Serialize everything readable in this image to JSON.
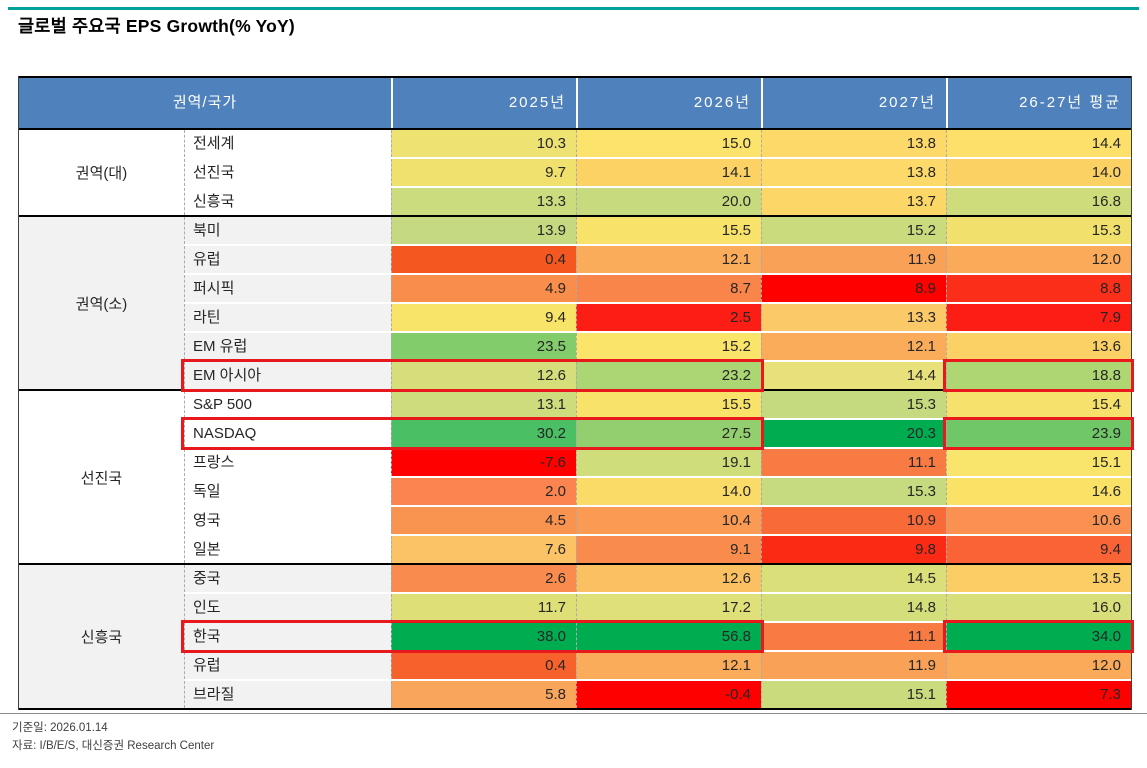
{
  "colors": {
    "accent_line": "#00A29B",
    "header_bg": "#4F81BD",
    "header_text": "#FFFFFF",
    "highlight_box": "#E8191C",
    "group_alt_bg": "#F2F2F2"
  },
  "chart_data": {
    "type": "heatmap",
    "title": "글로벌 주요국 EPS Growth(% YoY)",
    "unit": "% YoY",
    "columns": [
      "권역/국가",
      "2025년",
      "2026년",
      "2027년",
      "26-27년 평균"
    ],
    "groups": [
      {
        "label": "권역(대)",
        "bg": "#FFFFFF",
        "rows": [
          {
            "name": "전세계",
            "values": [
              "10.3",
              "15.0",
              "13.8",
              "14.4"
            ],
            "colors": [
              "#EDE272",
              "#FCE36B",
              "#FCD968",
              "#FCE06A"
            ],
            "highlighted": false
          },
          {
            "name": "선진국",
            "values": [
              "9.7",
              "14.1",
              "13.8",
              "14.0"
            ],
            "colors": [
              "#F0E16E",
              "#FCD265",
              "#FCD968",
              "#FCD164"
            ],
            "highlighted": false
          },
          {
            "name": "신흥국",
            "values": [
              "13.3",
              "20.0",
              "13.7",
              "16.8"
            ],
            "colors": [
              "#CBDC7E",
              "#C7DB7E",
              "#FCD667",
              "#CFDC7B"
            ],
            "highlighted": false
          }
        ]
      },
      {
        "label": "권역(소)",
        "bg": "#F2F2F2",
        "rows": [
          {
            "name": "북미",
            "values": [
              "13.9",
              "15.5",
              "15.2",
              "15.3"
            ],
            "colors": [
              "#C5DA80",
              "#F9E269",
              "#C9DB7D",
              "#F2E06C"
            ],
            "highlighted": false
          },
          {
            "name": "유럽",
            "values": [
              "0.4",
              "12.1",
              "11.9",
              "12.0"
            ],
            "colors": [
              "#F4571F",
              "#FBAC5B",
              "#F9A156",
              "#FAAA59"
            ],
            "highlighted": false
          },
          {
            "name": "퍼시픽",
            "values": [
              "4.9",
              "8.7",
              "8.9",
              "8.8"
            ],
            "colors": [
              "#F98D4B",
              "#F9854A",
              "#FE0000",
              "#FB2F19"
            ],
            "highlighted": false
          },
          {
            "name": "라틴",
            "values": [
              "9.4",
              "2.5",
              "13.3",
              "7.9"
            ],
            "colors": [
              "#F8E468",
              "#FC1D15",
              "#FBC967",
              "#FC1D15"
            ],
            "highlighted": false
          },
          {
            "name": "EM 유럽",
            "values": [
              "23.5",
              "15.2",
              "12.1",
              "13.6"
            ],
            "colors": [
              "#82CC6B",
              "#FAE46A",
              "#FBAC5B",
              "#FBD166"
            ],
            "highlighted": false
          },
          {
            "name": "EM 아시아",
            "values": [
              "12.6",
              "23.2",
              "14.4",
              "18.8"
            ],
            "colors": [
              "#D5DE7A",
              "#ACD573",
              "#E8E17B",
              "#AED673"
            ],
            "highlighted": true
          }
        ]
      },
      {
        "label": "선진국",
        "bg": "#FFFFFF",
        "rows": [
          {
            "name": "S&P 500",
            "values": [
              "13.1",
              "15.5",
              "15.3",
              "15.4"
            ],
            "colors": [
              "#CEDC7D",
              "#F8E269",
              "#C5DA7E",
              "#F5E16B"
            ],
            "highlighted": false
          },
          {
            "name": "NASDAQ",
            "values": [
              "30.2",
              "27.5",
              "20.3",
              "23.9"
            ],
            "colors": [
              "#4ABF63",
              "#93CF6F",
              "#00AC50",
              "#6FC767"
            ],
            "highlighted": true
          },
          {
            "name": "프랑스",
            "values": [
              "-7.6",
              "19.1",
              "11.1",
              "15.1"
            ],
            "colors": [
              "#FE0000",
              "#CFDD7B",
              "#F87B44",
              "#FAE56C"
            ],
            "highlighted": false
          },
          {
            "name": "독일",
            "values": [
              "2.0",
              "14.0",
              "15.3",
              "14.6"
            ],
            "colors": [
              "#FB8450",
              "#FBDB67",
              "#C6DB7F",
              "#FAE267"
            ],
            "highlighted": false
          },
          {
            "name": "영국",
            "values": [
              "4.5",
              "10.4",
              "10.9",
              "10.6"
            ],
            "colors": [
              "#F99350",
              "#FA9A53",
              "#F86A37",
              "#FA9150"
            ],
            "highlighted": false
          },
          {
            "name": "일본",
            "values": [
              "7.6",
              "9.1",
              "9.8",
              "9.4"
            ],
            "colors": [
              "#FBC266",
              "#F98C4D",
              "#FB2A14",
              "#F96335"
            ],
            "highlighted": false
          }
        ]
      },
      {
        "label": "신흥국",
        "bg": "#F2F2F2",
        "rows": [
          {
            "name": "중국",
            "values": [
              "2.6",
              "12.6",
              "14.5",
              "13.5"
            ],
            "colors": [
              "#F88B4D",
              "#FBC062",
              "#DADF79",
              "#FBCD65"
            ],
            "highlighted": false
          },
          {
            "name": "인도",
            "values": [
              "11.7",
              "17.2",
              "14.8",
              "16.0"
            ],
            "colors": [
              "#DEDF76",
              "#E0E07B",
              "#D4DE7B",
              "#D8DF7A"
            ],
            "highlighted": false
          },
          {
            "name": "한국",
            "values": [
              "38.0",
              "56.8",
              "11.1",
              "34.0"
            ],
            "colors": [
              "#00AC50",
              "#00AC50",
              "#F87B44",
              "#00AC50"
            ],
            "highlighted": true
          },
          {
            "name": "유럽",
            "values": [
              "0.4",
              "12.1",
              "11.9",
              "12.0"
            ],
            "colors": [
              "#F7612B",
              "#FBAC5B",
              "#F9A156",
              "#FAAA59"
            ],
            "highlighted": false
          },
          {
            "name": "브라질",
            "values": [
              "5.8",
              "-0.4",
              "15.1",
              "7.3"
            ],
            "colors": [
              "#FAA55C",
              "#FE0000",
              "#C9DB7D",
              "#FE0000"
            ],
            "highlighted": false
          }
        ]
      }
    ]
  },
  "footer": {
    "basis_date": "기준일: 2026.01.14",
    "source": "자료: I/B/E/S, 대신증권 Research Center"
  }
}
